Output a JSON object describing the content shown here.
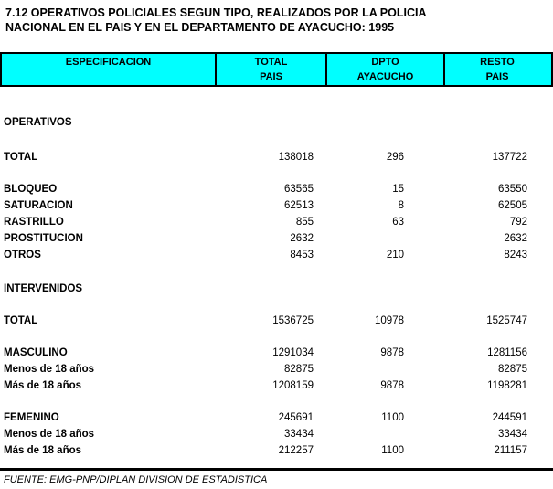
{
  "title": {
    "line1": "7.12 OPERATIVOS POLICIALES SEGUN TIPO, REALIZADOS POR LA POLICIA",
    "line2": "NACIONAL EN EL PAIS Y EN EL DEPARTAMENTO DE AYACUCHO: 1995"
  },
  "colors": {
    "header_background": "#00FFFF",
    "border": "#000000",
    "text": "#000000",
    "page_background": "#FFFFFF"
  },
  "table": {
    "header": {
      "especificacion": {
        "line1": "ESPECIFICACION",
        "line2": ""
      },
      "total_pais": {
        "line1": "TOTAL",
        "line2": "PAIS"
      },
      "dpto_ayacucho": {
        "line1": "DPTO",
        "line2": "AYACUCHO"
      },
      "resto_pais": {
        "line1": "RESTO",
        "line2": "PAIS"
      }
    },
    "rows": [
      {
        "label": "OPERATIVOS",
        "total": "",
        "dpto": "",
        "resto": ""
      },
      {
        "label": "TOTAL",
        "total": "138018",
        "dpto": "296",
        "resto": "137722"
      },
      {
        "label": "BLOQUEO",
        "total": "63565",
        "dpto": "15",
        "resto": "63550"
      },
      {
        "label": "SATURACION",
        "total": "62513",
        "dpto": "8",
        "resto": "62505"
      },
      {
        "label": "RASTRILLO",
        "total": "855",
        "dpto": "63",
        "resto": "792"
      },
      {
        "label": "PROSTITUCION",
        "total": "2632",
        "dpto": "",
        "resto": "2632"
      },
      {
        "label": "OTROS",
        "total": "8453",
        "dpto": "210",
        "resto": "8243"
      },
      {
        "label": "INTERVENIDOS",
        "total": "",
        "dpto": "",
        "resto": ""
      },
      {
        "label": "TOTAL",
        "total": "1536725",
        "dpto": "10978",
        "resto": "1525747"
      },
      {
        "label": "MASCULINO",
        "total": "1291034",
        "dpto": "9878",
        "resto": "1281156"
      },
      {
        "label": "Menos de 18 años",
        "total": "82875",
        "dpto": "",
        "resto": "82875"
      },
      {
        "label": "Más de 18 años",
        "total": "1208159",
        "dpto": "9878",
        "resto": "1198281"
      },
      {
        "label": "FEMENINO",
        "total": "245691",
        "dpto": "1100",
        "resto": "244591"
      },
      {
        "label": "Menos de 18 años",
        "total": "33434",
        "dpto": "",
        "resto": "33434"
      },
      {
        "label": "Más de 18 años",
        "total": "212257",
        "dpto": "1100",
        "resto": "211157"
      }
    ]
  },
  "footer": {
    "source": "FUENTE: EMG-PNP/DIPLAN DIVISION DE ESTADISTICA"
  }
}
